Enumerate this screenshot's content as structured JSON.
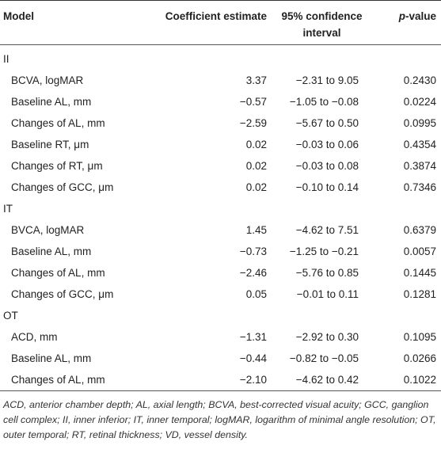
{
  "header": {
    "model": "Model",
    "coef": "Coefficient estimate",
    "ci_line1": "95% confidence",
    "ci_line2": "interval",
    "p_italic": "p",
    "p_rest": "-value"
  },
  "groups": [
    {
      "label": "II",
      "rows": [
        {
          "variable": "BCVA, logMAR",
          "coef": "3.37",
          "ci": "−2.31 to 9.05",
          "p": "0.2430"
        },
        {
          "variable": "Baseline AL, mm",
          "coef": "−0.57",
          "ci": "−1.05 to −0.08",
          "p": "0.0224"
        },
        {
          "variable": "Changes of AL, mm",
          "coef": "−2.59",
          "ci": "−5.67 to 0.50",
          "p": "0.0995"
        },
        {
          "variable": "Baseline RT, μm",
          "coef": "0.02",
          "ci": "−0.03 to 0.06",
          "p": "0.4354"
        },
        {
          "variable": "Changes of RT, μm",
          "coef": "0.02",
          "ci": "−0.03 to 0.08",
          "p": "0.3874"
        },
        {
          "variable": "Changes of GCC, μm",
          "coef": "0.02",
          "ci": "−0.10 to 0.14",
          "p": "0.7346"
        }
      ]
    },
    {
      "label": "IT",
      "rows": [
        {
          "variable": "BVCA, logMAR",
          "coef": "1.45",
          "ci": "−4.62 to 7.51",
          "p": "0.6379"
        },
        {
          "variable": "Baseline AL, mm",
          "coef": "−0.73",
          "ci": "−1.25 to −0.21",
          "p": "0.0057"
        },
        {
          "variable": "Changes of AL, mm",
          "coef": "−2.46",
          "ci": "−5.76 to 0.85",
          "p": "0.1445"
        },
        {
          "variable": "Changes of GCC, μm",
          "coef": "0.05",
          "ci": "−0.01 to 0.11",
          "p": "0.1281"
        }
      ]
    },
    {
      "label": "OT",
      "rows": [
        {
          "variable": "ACD, mm",
          "coef": "−1.31",
          "ci": "−2.92 to 0.30",
          "p": "0.1095"
        },
        {
          "variable": "Baseline AL, mm",
          "coef": "−0.44",
          "ci": "−0.82 to −0.05",
          "p": "0.0266"
        },
        {
          "variable": "Changes of AL, mm",
          "coef": "−2.10",
          "ci": "−4.62 to 0.42",
          "p": "0.1022"
        }
      ]
    }
  ],
  "footnote": "ACD, anterior chamber depth; AL, axial length; BCVA, best-corrected visual acuity; GCC, ganglion cell complex; II, inner inferior; IT, inner temporal; logMAR, logarithm of minimal angle resolution; OT, outer temporal; RT, retinal thickness; VD, vessel density."
}
